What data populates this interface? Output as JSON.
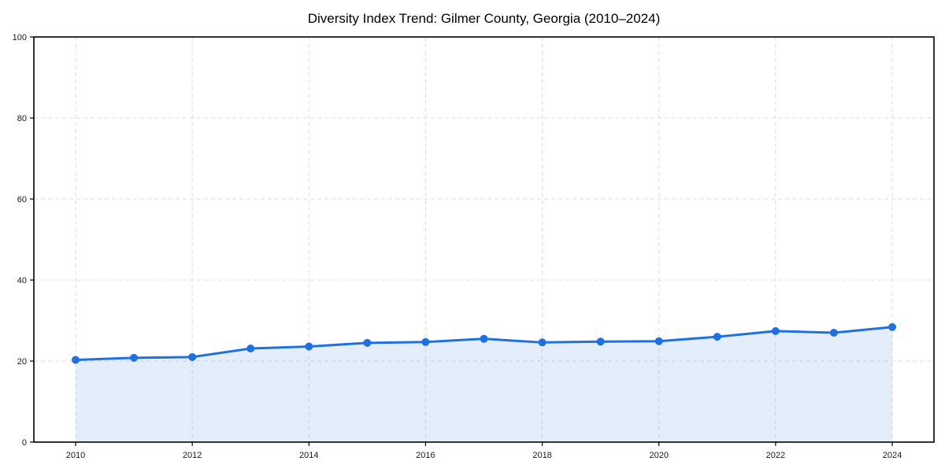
{
  "page": {
    "background": "#ffffff"
  },
  "chart_data": {
    "type": "area",
    "title": "Diversity Index Trend: Gilmer County, Georgia (2010–2024)",
    "xlabel": "",
    "ylabel": "",
    "x": [
      2010,
      2011,
      2012,
      2013,
      2014,
      2015,
      2016,
      2017,
      2018,
      2019,
      2020,
      2021,
      2022,
      2023,
      2024
    ],
    "series": [
      {
        "name": "Diversity Index",
        "values": [
          20.3,
          20.8,
          21.0,
          23.1,
          23.6,
          24.5,
          24.7,
          25.5,
          24.6,
          24.8,
          24.9,
          26.0,
          27.4,
          27.0,
          28.4
        ]
      }
    ],
    "ylim": [
      0,
      100
    ],
    "yticks": [
      0,
      20,
      40,
      60,
      80,
      100
    ],
    "xticks": [
      2010,
      2012,
      2014,
      2016,
      2018,
      2020,
      2022,
      2024
    ],
    "grid": true,
    "grid_style": "dashed",
    "legend_position": "none",
    "line_color": "#2170e0",
    "marker_color": "#2170e0",
    "fill_color": "#2170e0",
    "fill_opacity": 0.12,
    "grid_color": "#dcdcdc",
    "axis_color": "#000000",
    "tick_label_color": "#1a1a1a",
    "title_color": "#000000"
  }
}
